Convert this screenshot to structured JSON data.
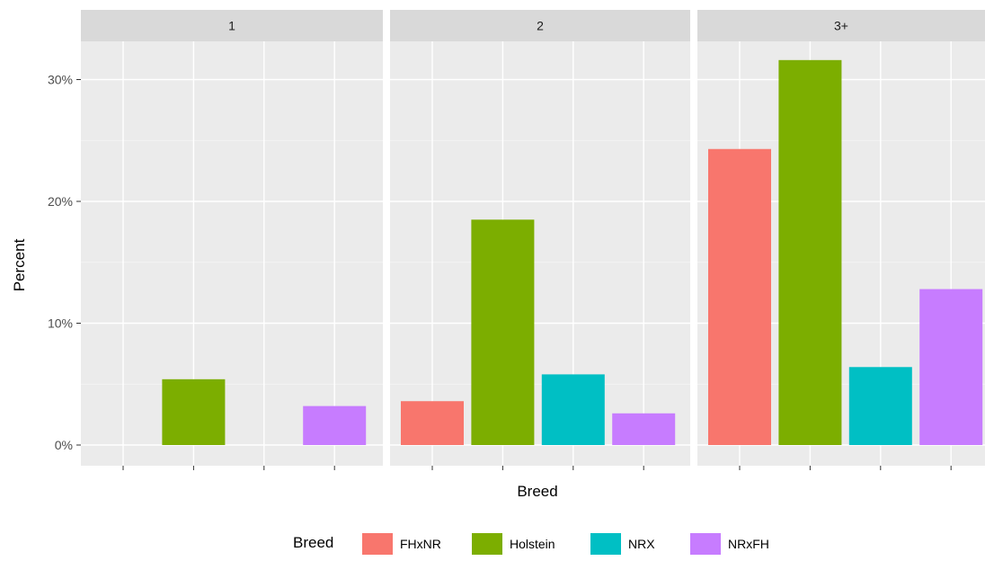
{
  "chart_data": {
    "type": "bar",
    "facet_var": "",
    "facets": [
      "1",
      "2",
      "3+"
    ],
    "categories": [
      "FHxNR",
      "Holstein",
      "NRX",
      "NRxFH"
    ],
    "series": [
      {
        "facet": "1",
        "values": [
          null,
          5.4,
          null,
          3.2
        ]
      },
      {
        "facet": "2",
        "values": [
          3.6,
          18.5,
          5.8,
          2.6
        ]
      },
      {
        "facet": "3+",
        "values": [
          24.3,
          31.6,
          6.4,
          12.8
        ]
      }
    ],
    "xlabel": "Breed",
    "ylabel": "Percent",
    "ylim": [
      -1.6,
      34
    ],
    "yticks": [
      0,
      10,
      20,
      30
    ],
    "ytick_labels": [
      "0%",
      "10%",
      "20%",
      "30%"
    ],
    "legend": {
      "title": "Breed",
      "position": "bottom",
      "entries": [
        "FHxNR",
        "Holstein",
        "NRX",
        "NRxFH"
      ]
    },
    "colors": {
      "FHxNR": "#F8766D",
      "Holstein": "#7CAE00",
      "NRX": "#00BFC4",
      "NRxFH": "#C77CFF"
    },
    "grid": true
  }
}
